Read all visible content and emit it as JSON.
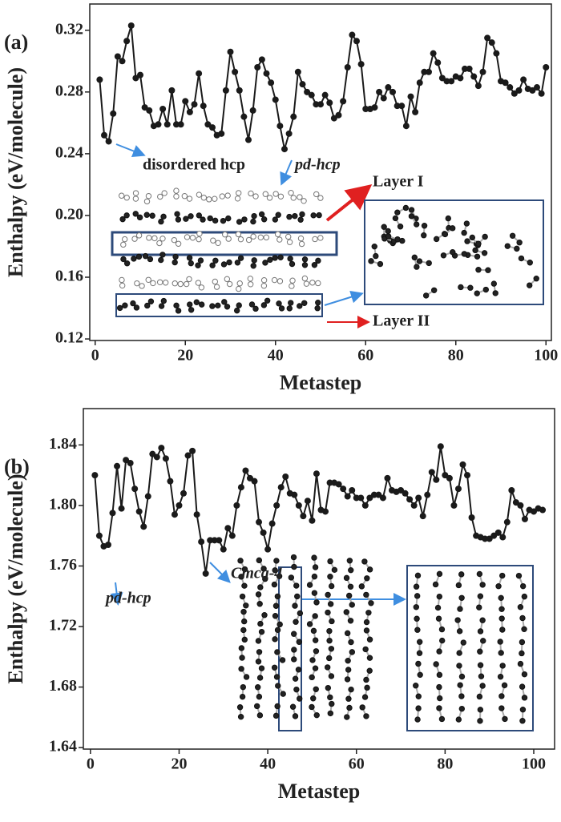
{
  "chart_data": [
    {
      "type": "line",
      "panel_label": "(a)",
      "x_label": "Metastep",
      "y_label": "Enthalpy (eV/molecule)",
      "annotations": [
        "disordered hcp",
        "pd-hcp",
        "Layer I",
        "Layer II"
      ],
      "xlim": [
        -1.2,
        101.2
      ],
      "ylim": [
        0.119,
        0.337
      ],
      "xticks": [
        0,
        20,
        40,
        60,
        80,
        100
      ],
      "yticks": [
        0.12,
        0.16,
        {
          "value": 0.2,
          "label": "0.20"
        },
        0.24,
        0.28,
        0.32
      ],
      "x": [
        1,
        2,
        3,
        4,
        5,
        6,
        7,
        8,
        9,
        10,
        11,
        12,
        13,
        14,
        15,
        16,
        17,
        18,
        19,
        20,
        21,
        22,
        23,
        24,
        25,
        26,
        27,
        28,
        29,
        30,
        31,
        32,
        33,
        34,
        35,
        36,
        37,
        38,
        39,
        40,
        41,
        42,
        43,
        44,
        45,
        46,
        47,
        48,
        49,
        50,
        51,
        52,
        53,
        54,
        55,
        56,
        57,
        58,
        59,
        60,
        61,
        62,
        63,
        64,
        65,
        66,
        67,
        68,
        69,
        70,
        71,
        72,
        73,
        74,
        75,
        76,
        77,
        78,
        79,
        80,
        81,
        82,
        83,
        84,
        85,
        86,
        87,
        88,
        89,
        90,
        91,
        92,
        93,
        94,
        95,
        96,
        97,
        98,
        99,
        100
      ],
      "series": [
        {
          "color": "#1a1a1a",
          "values": [
            0.288,
            0.252,
            0.248,
            0.266,
            0.303,
            0.3,
            0.313,
            0.323,
            0.289,
            0.291,
            0.27,
            0.268,
            0.258,
            0.259,
            0.269,
            0.259,
            0.281,
            0.259,
            0.259,
            0.274,
            0.267,
            0.272,
            0.292,
            0.271,
            0.259,
            0.257,
            0.252,
            0.253,
            0.281,
            0.306,
            0.293,
            0.281,
            0.264,
            0.249,
            0.268,
            0.296,
            0.301,
            0.292,
            0.286,
            0.275,
            0.258,
            0.243,
            0.253,
            0.264,
            0.293,
            0.285,
            0.28,
            0.278,
            0.272,
            0.272,
            0.278,
            0.273,
            0.263,
            0.265,
            0.274,
            0.296,
            0.317,
            0.313,
            0.298,
            0.269,
            0.269,
            0.27,
            0.28,
            0.276,
            0.283,
            0.28,
            0.271,
            0.271,
            0.258,
            0.277,
            0.267,
            0.286,
            0.293,
            0.293,
            0.305,
            0.299,
            0.289,
            0.287,
            0.287,
            0.29,
            0.289,
            0.295,
            0.295,
            0.29,
            0.284,
            0.293,
            0.315,
            0.312,
            0.305,
            0.287,
            0.286,
            0.283,
            0.279,
            0.281,
            0.288,
            0.282,
            0.281,
            0.283,
            0.279,
            0.296
          ]
        }
      ]
    },
    {
      "type": "line",
      "panel_label": "(b)",
      "x_label": "Metastep",
      "y_label": "Enthalpy (eV/molecule)",
      "annotations": [
        "pd-hcp",
        "Cmca-4"
      ],
      "xlim": [
        -1.6,
        104.7
      ],
      "ylim": [
        1.639,
        1.864
      ],
      "xticks": [
        0,
        20,
        40,
        60,
        80,
        100
      ],
      "yticks": [
        1.64,
        1.68,
        1.72,
        1.76,
        {
          "value": 1.8,
          "label": "1.80"
        },
        1.84
      ],
      "x": [
        1,
        2,
        3,
        4,
        5,
        6,
        7,
        8,
        9,
        10,
        11,
        12,
        13,
        14,
        15,
        16,
        17,
        18,
        19,
        20,
        21,
        22,
        23,
        24,
        25,
        26,
        27,
        28,
        29,
        30,
        31,
        32,
        33,
        34,
        35,
        36,
        37,
        38,
        39,
        40,
        41,
        42,
        43,
        44,
        45,
        46,
        47,
        48,
        49,
        50,
        51,
        52,
        53,
        54,
        55,
        56,
        57,
        58,
        59,
        60,
        61,
        62,
        63,
        64,
        65,
        66,
        67,
        68,
        69,
        70,
        71,
        72,
        73,
        74,
        75,
        76,
        77,
        78,
        79,
        80,
        81,
        82,
        83,
        84,
        85,
        86,
        87,
        88,
        89,
        90,
        91,
        92,
        93,
        94,
        95,
        96,
        97,
        98,
        99,
        100,
        101,
        102
      ],
      "series": [
        {
          "color": "#1a1a1a",
          "values": [
            1.82,
            1.78,
            1.773,
            1.774,
            1.795,
            1.826,
            1.798,
            1.83,
            1.828,
            1.811,
            1.796,
            1.786,
            1.806,
            1.834,
            1.832,
            1.838,
            1.831,
            1.816,
            1.794,
            1.8,
            1.808,
            1.833,
            1.836,
            1.794,
            1.776,
            1.755,
            1.777,
            1.777,
            1.777,
            1.771,
            1.785,
            1.78,
            1.8,
            1.812,
            1.823,
            1.818,
            1.816,
            1.789,
            1.782,
            1.771,
            1.788,
            1.8,
            1.812,
            1.819,
            1.808,
            1.807,
            1.8,
            1.793,
            1.803,
            1.79,
            1.821,
            1.797,
            1.796,
            1.815,
            1.815,
            1.814,
            1.811,
            1.806,
            1.81,
            1.805,
            1.805,
            1.8,
            1.805,
            1.807,
            1.807,
            1.805,
            1.818,
            1.81,
            1.809,
            1.81,
            1.808,
            1.804,
            1.8,
            1.805,
            1.793,
            1.807,
            1.822,
            1.817,
            1.839,
            1.82,
            1.818,
            1.8,
            1.811,
            1.827,
            1.82,
            1.792,
            1.78,
            1.779,
            1.778,
            1.778,
            1.78,
            1.782,
            1.779,
            1.789,
            1.81,
            1.802,
            1.8,
            1.791,
            1.797,
            1.796,
            1.798,
            1.797
          ]
        }
      ]
    }
  ]
}
